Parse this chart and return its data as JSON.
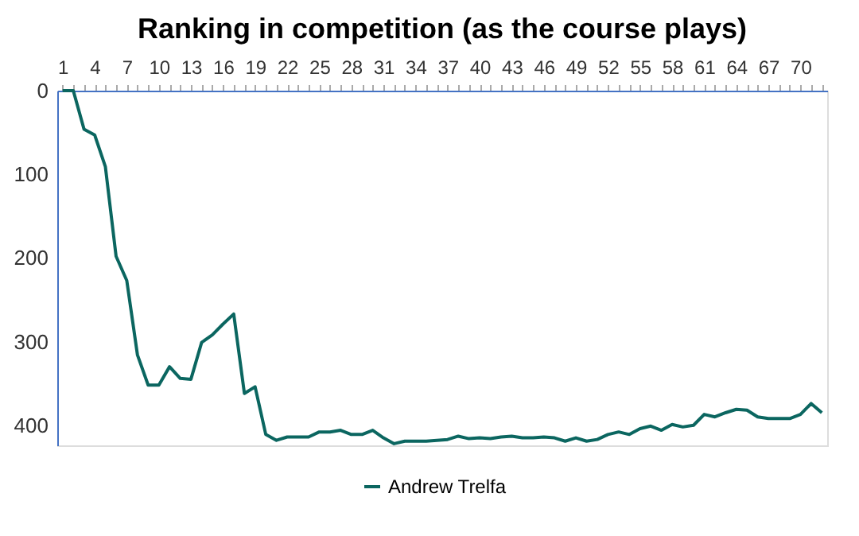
{
  "chart_data": {
    "type": "line",
    "title": "Ranking in competition (as the course plays)",
    "categories": [
      "1",
      null,
      null,
      "4",
      null,
      null,
      "7",
      null,
      null,
      "10",
      null,
      null,
      "13",
      null,
      null,
      "16",
      null,
      null,
      "19",
      null,
      null,
      "22",
      null,
      null,
      "25",
      null,
      null,
      "28",
      null,
      null,
      "31",
      null,
      null,
      "34",
      null,
      null,
      "37",
      null,
      null,
      "40",
      null,
      null,
      "43",
      null,
      null,
      "46",
      null,
      null,
      "49",
      null,
      null,
      "52",
      null,
      null,
      "55",
      null,
      null,
      "58",
      null,
      null,
      "61",
      null,
      null,
      "64",
      null,
      null,
      "67",
      null,
      null,
      "70",
      null,
      null
    ],
    "series": [
      {
        "name": "Andrew Trelfa",
        "color": "#0b6660",
        "values": [
          0,
          0,
          46,
          53,
          91,
          198,
          227,
          316,
          352,
          352,
          330,
          344,
          345,
          301,
          292,
          279,
          267,
          362,
          354,
          411,
          418,
          414,
          414,
          414,
          408,
          408,
          406,
          411,
          411,
          406,
          415,
          422,
          419,
          419,
          419,
          418,
          417,
          413,
          416,
          415,
          416,
          414,
          413,
          415,
          415,
          414,
          415,
          419,
          415,
          419,
          417,
          411,
          408,
          411,
          404,
          401,
          406,
          399,
          402,
          400,
          387,
          390,
          385,
          381,
          382,
          390,
          392,
          392,
          392,
          387,
          374,
          385
        ]
      }
    ],
    "ylim": [
      424,
      0
    ],
    "yticks": [
      0,
      100,
      200,
      300,
      400
    ],
    "grid": false,
    "legend": "bottom",
    "marker": "none",
    "line_style": "solid"
  }
}
